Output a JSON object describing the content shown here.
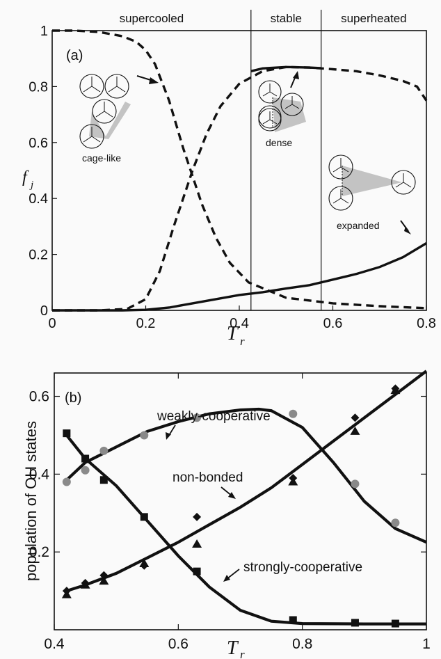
{
  "chart_data": [
    {
      "type": "line",
      "panel_label": "(a)",
      "xlabel": "T",
      "xlabel_sub": "r",
      "ylabel": "f",
      "ylabel_sub": "j",
      "xlim": [
        0,
        0.8
      ],
      "ylim": [
        0,
        1
      ],
      "xticks": [
        0,
        0.2,
        0.4,
        0.6,
        0.8
      ],
      "xtick_labels": [
        "0",
        "0.2",
        "0.4",
        "0.6",
        "0.8"
      ],
      "yticks": [
        0,
        0.2,
        0.4,
        0.6,
        0.8,
        1
      ],
      "ytick_labels": [
        "0",
        "0.2",
        "0.4",
        "0.6",
        "0.8",
        "1"
      ],
      "regions": [
        {
          "label": "supercooled",
          "from": 0,
          "to": 0.425
        },
        {
          "label": "stable",
          "from": 0.425,
          "to": 0.575
        },
        {
          "label": "superheated",
          "from": 0.575,
          "to": 0.8
        }
      ],
      "region_boundaries": [
        0.425,
        0.575
      ],
      "series": [
        {
          "name": "cage-like",
          "style": "dashed",
          "x": [
            0,
            0.05,
            0.1,
            0.15,
            0.18,
            0.2,
            0.22,
            0.25,
            0.28,
            0.3,
            0.32,
            0.35,
            0.38,
            0.42,
            0.5,
            0.6,
            0.7,
            0.8
          ],
          "y": [
            1,
            1,
            0.995,
            0.98,
            0.96,
            0.93,
            0.88,
            0.75,
            0.58,
            0.48,
            0.38,
            0.26,
            0.17,
            0.1,
            0.045,
            0.025,
            0.015,
            0.008
          ]
        },
        {
          "name": "dense",
          "style": "dashed",
          "x": [
            0,
            0.1,
            0.16,
            0.2,
            0.23,
            0.26,
            0.28,
            0.3,
            0.33,
            0.36,
            0.4,
            0.45,
            0.5,
            0.55,
            0.6,
            0.65,
            0.7,
            0.75,
            0.78,
            0.8
          ],
          "y": [
            0,
            0,
            0.005,
            0.04,
            0.14,
            0.3,
            0.4,
            0.5,
            0.63,
            0.73,
            0.81,
            0.855,
            0.87,
            0.868,
            0.862,
            0.855,
            0.84,
            0.82,
            0.8,
            0.75
          ]
        },
        {
          "name": "expanded",
          "style": "solid",
          "x": [
            0,
            0.15,
            0.2,
            0.25,
            0.3,
            0.35,
            0.4,
            0.45,
            0.5,
            0.55,
            0.6,
            0.65,
            0.7,
            0.75,
            0.8
          ],
          "y": [
            0,
            0,
            0.002,
            0.01,
            0.025,
            0.04,
            0.055,
            0.065,
            0.078,
            0.09,
            0.11,
            0.13,
            0.155,
            0.19,
            0.24
          ]
        },
        {
          "name": "dense",
          "style": "solid",
          "x": [
            0.425,
            0.45,
            0.5,
            0.55,
            0.575
          ],
          "y": [
            0.855,
            0.865,
            0.87,
            0.868,
            0.866
          ]
        }
      ],
      "annotations": [
        "cage-like",
        "dense",
        "expanded"
      ]
    },
    {
      "type": "scatter",
      "panel_label": "(b)",
      "xlabel": "T",
      "xlabel_sub": "r",
      "ylabel": "population of OH states",
      "xlim": [
        0.4,
        1.0
      ],
      "ylim": [
        0,
        0.66
      ],
      "xticks": [
        0.4,
        0.6,
        0.8,
        1
      ],
      "xtick_labels": [
        "0.4",
        "0.6",
        "0.8",
        "1"
      ],
      "yticks": [
        0.2,
        0.4,
        0.6
      ],
      "ytick_labels": [
        "0.2",
        "0.4",
        "0.6"
      ],
      "series": [
        {
          "name": "weakly-cooperative",
          "marker": "circle",
          "points_x": [
            0.42,
            0.45,
            0.48,
            0.545,
            0.63,
            0.785,
            0.885,
            0.95
          ],
          "points_y": [
            0.38,
            0.41,
            0.46,
            0.5,
            0.545,
            0.555,
            0.375,
            0.275
          ],
          "fit_x": [
            0.42,
            0.45,
            0.5,
            0.55,
            0.6,
            0.65,
            0.7,
            0.73,
            0.75,
            0.8,
            0.85,
            0.9,
            0.95,
            1.0
          ],
          "fit_y": [
            0.385,
            0.43,
            0.47,
            0.51,
            0.535,
            0.555,
            0.565,
            0.567,
            0.563,
            0.52,
            0.43,
            0.33,
            0.26,
            0.225
          ]
        },
        {
          "name": "strongly-cooperative",
          "marker": "square",
          "points_x": [
            0.42,
            0.45,
            0.48,
            0.545,
            0.63,
            0.785,
            0.885,
            0.95
          ],
          "points_y": [
            0.505,
            0.44,
            0.385,
            0.29,
            0.15,
            0.025,
            0.018,
            0.016
          ],
          "fit_x": [
            0.42,
            0.45,
            0.5,
            0.55,
            0.6,
            0.65,
            0.7,
            0.75,
            0.8,
            0.9,
            1.0
          ],
          "fit_y": [
            0.5,
            0.44,
            0.37,
            0.28,
            0.19,
            0.11,
            0.05,
            0.022,
            0.016,
            0.015,
            0.015
          ]
        },
        {
          "name": "non-bonded",
          "marker": "triangle",
          "points_x": [
            0.42,
            0.45,
            0.48,
            0.545,
            0.63,
            0.785,
            0.885,
            0.95
          ],
          "points_y": [
            0.09,
            0.115,
            0.125,
            0.17,
            0.22,
            0.38,
            0.51,
            0.615
          ],
          "fit_x": [
            0.42,
            0.45,
            0.5,
            0.55,
            0.6,
            0.65,
            0.7,
            0.75,
            0.8,
            0.85,
            0.9,
            0.95,
            1.0
          ],
          "fit_y": [
            0.1,
            0.115,
            0.145,
            0.185,
            0.225,
            0.27,
            0.315,
            0.365,
            0.425,
            0.485,
            0.545,
            0.605,
            0.665
          ]
        },
        {
          "name": "non-bonded",
          "marker": "diamond",
          "points_x": [
            0.42,
            0.45,
            0.48,
            0.545,
            0.63,
            0.785,
            0.885,
            0.95
          ],
          "points_y": [
            0.1,
            0.12,
            0.14,
            0.165,
            0.29,
            0.39,
            0.545,
            0.62
          ]
        }
      ],
      "annotations": [
        "weakly-cooperative",
        "non-bonded",
        "strongly-cooperative"
      ]
    }
  ]
}
